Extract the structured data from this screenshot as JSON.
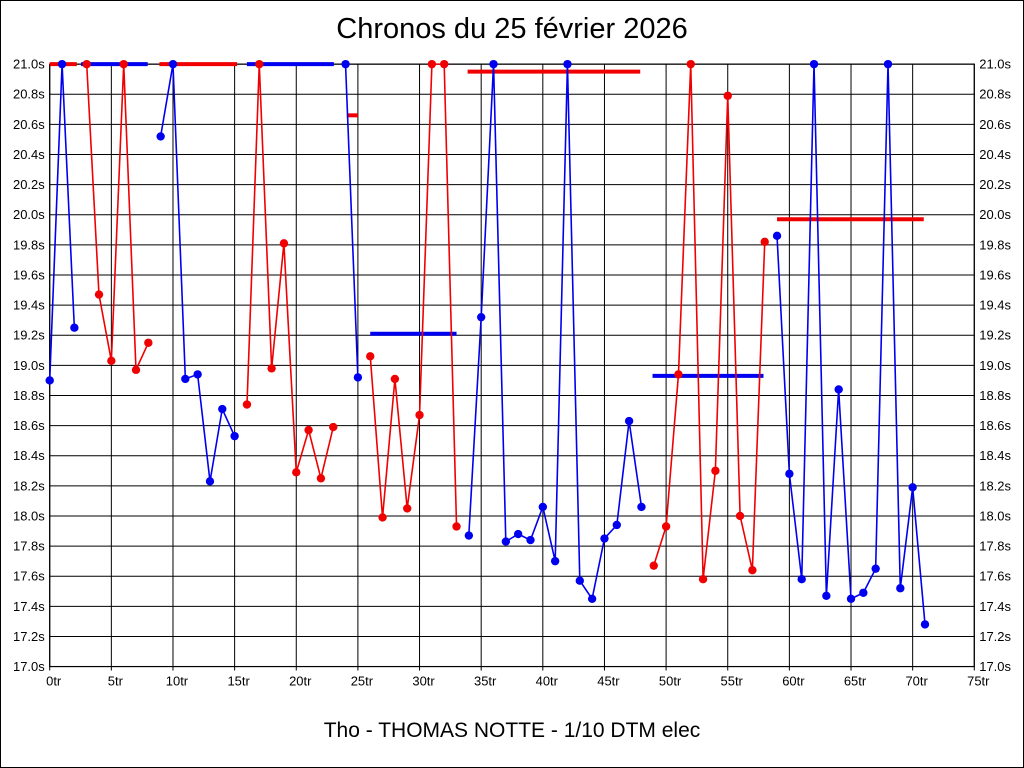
{
  "footer": {
    "text": "Tho - THOMAS NOTTE - 1/10 DTM elec"
  },
  "colors": {
    "blue_series": "#0000f0",
    "red_series": "#f00000",
    "grid": "#000000",
    "text": "#000000",
    "background": "#ffffff"
  },
  "chart_data": {
    "type": "line",
    "title": "Chronos du 25 février 2026",
    "x_axis": {
      "unit": "tr",
      "min": 0,
      "max": 75,
      "tick_step": 5,
      "labels": [
        "0tr",
        "5tr",
        "10tr",
        "15tr",
        "20tr",
        "25tr",
        "30tr",
        "35tr",
        "40tr",
        "45tr",
        "50tr",
        "55tr",
        "60tr",
        "65tr",
        "70tr",
        "75tr"
      ]
    },
    "y_axis": {
      "unit": "s",
      "min": 17.0,
      "max": 21.0,
      "tick_step": 0.2,
      "clip_max": 21.0,
      "labels_left": [
        "21.0s",
        "20.8s",
        "20.6s",
        "20.4s",
        "20.2s",
        "20.0s",
        "19.8s",
        "19.6s",
        "19.4s",
        "19.2s",
        "19.0s",
        "18.8s",
        "18.6s",
        "18.4s",
        "18.2s",
        "18.0s",
        "17.8s",
        "17.6s",
        "17.4s",
        "17.2s",
        "17.0s"
      ],
      "labels_right": [
        "21.0s",
        "20.8s",
        "20.6s",
        "20.4s",
        "20.2s",
        "20.0s",
        "19.8s",
        "19.6s",
        "19.4s",
        "19.2s",
        "19.0s",
        "18.8s",
        "18.6s",
        "18.4s",
        "18.2s",
        "18.0s",
        "17.8s",
        "17.6s",
        "17.4s",
        "17.2s",
        "17.0s"
      ]
    },
    "grid": true,
    "legend": "none",
    "series": [
      {
        "name": "driver-blue",
        "color_key": "blue_series",
        "stints": [
          [
            [
              0,
              18.9
            ],
            [
              1,
              21.0
            ],
            [
              2,
              19.25
            ]
          ],
          [
            [
              9,
              20.52
            ],
            [
              10,
              21.0
            ],
            [
              11,
              18.91
            ],
            [
              12,
              18.94
            ],
            [
              13,
              18.23
            ],
            [
              14,
              18.71
            ],
            [
              15,
              18.53
            ]
          ],
          [
            [
              24,
              21.0
            ],
            [
              25,
              18.92
            ]
          ],
          [
            [
              34,
              17.87
            ],
            [
              35,
              19.32
            ],
            [
              36,
              21.0
            ],
            [
              37,
              17.83
            ],
            [
              38,
              17.88
            ],
            [
              39,
              17.84
            ],
            [
              40,
              18.06
            ],
            [
              41,
              17.7
            ],
            [
              42,
              21.0
            ],
            [
              43,
              17.57
            ],
            [
              44,
              17.45
            ],
            [
              45,
              17.85
            ],
            [
              46,
              17.94
            ],
            [
              47,
              18.63
            ],
            [
              48,
              18.06
            ]
          ],
          [
            [
              59,
              19.86
            ],
            [
              60,
              18.28
            ],
            [
              61,
              17.58
            ],
            [
              62,
              21.0
            ],
            [
              63,
              17.47
            ],
            [
              64,
              18.84
            ],
            [
              65,
              17.45
            ],
            [
              66,
              17.49
            ],
            [
              67,
              17.65
            ],
            [
              68,
              21.0
            ],
            [
              69,
              17.52
            ],
            [
              70,
              18.19
            ],
            [
              71,
              17.28
            ]
          ]
        ]
      },
      {
        "name": "driver-red",
        "color_key": "red_series",
        "stints": [
          [
            [
              3,
              21.0
            ],
            [
              4,
              19.47
            ],
            [
              5,
              19.03
            ],
            [
              6,
              21.0
            ],
            [
              7,
              18.97
            ],
            [
              8,
              19.15
            ]
          ],
          [
            [
              16,
              18.74
            ],
            [
              17,
              21.0
            ],
            [
              18,
              18.98
            ],
            [
              19,
              19.81
            ],
            [
              20,
              18.29
            ],
            [
              21,
              18.57
            ],
            [
              22,
              18.25
            ],
            [
              23,
              18.59
            ]
          ],
          [
            [
              26,
              19.06
            ],
            [
              27,
              17.99
            ],
            [
              28,
              18.91
            ],
            [
              29,
              18.05
            ],
            [
              30,
              18.67
            ],
            [
              31,
              21.0
            ],
            [
              32,
              21.0
            ],
            [
              33,
              17.93
            ]
          ],
          [
            [
              49,
              17.67
            ],
            [
              50,
              17.93
            ],
            [
              51,
              18.94
            ],
            [
              52,
              21.0
            ],
            [
              53,
              17.58
            ],
            [
              54,
              18.3
            ],
            [
              55,
              20.79
            ],
            [
              56,
              18.0
            ],
            [
              57,
              17.64
            ],
            [
              58,
              19.82
            ]
          ]
        ]
      }
    ],
    "average_markers": [
      {
        "color_key": "red_series",
        "lap_from": 0.0,
        "lap_to": 2.2,
        "value": 21.0
      },
      {
        "color_key": "blue_series",
        "lap_from": 2.55,
        "lap_to": 7.95,
        "value": 21.0
      },
      {
        "color_key": "red_series",
        "lap_from": 8.9,
        "lap_to": 15.2,
        "value": 21.0
      },
      {
        "color_key": "blue_series",
        "lap_from": 16.0,
        "lap_to": 23.05,
        "value": 21.0
      },
      {
        "color_key": "red_series",
        "lap_from": 24.1,
        "lap_to": 25.0,
        "value": 20.66
      },
      {
        "color_key": "blue_series",
        "lap_from": 26.0,
        "lap_to": 33.0,
        "value": 19.21
      },
      {
        "color_key": "red_series",
        "lap_from": 33.9,
        "lap_to": 47.9,
        "value": 20.95
      },
      {
        "color_key": "blue_series",
        "lap_from": 48.9,
        "lap_to": 57.9,
        "value": 18.93
      },
      {
        "color_key": "red_series",
        "lap_from": 59.0,
        "lap_to": 70.9,
        "value": 19.97
      }
    ]
  }
}
